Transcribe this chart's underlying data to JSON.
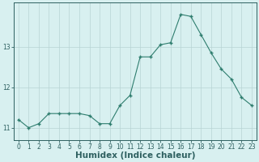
{
  "x": [
    0,
    1,
    2,
    3,
    4,
    5,
    6,
    7,
    8,
    9,
    10,
    11,
    12,
    13,
    14,
    15,
    16,
    17,
    18,
    19,
    20,
    21,
    22,
    23
  ],
  "y": [
    11.2,
    11.0,
    11.1,
    11.35,
    11.35,
    11.35,
    11.35,
    11.3,
    11.1,
    11.1,
    11.55,
    11.8,
    12.75,
    12.75,
    13.05,
    13.1,
    13.8,
    13.75,
    13.3,
    12.85,
    12.45,
    12.2,
    11.75,
    11.55
  ],
  "line_color": "#2e7d6e",
  "marker_color": "#2e7d6e",
  "bg_color": "#d8f0f0",
  "grid_color": "#b8d4d4",
  "xlabel": "Humidex (Indice chaleur)",
  "ylim": [
    10.7,
    14.1
  ],
  "xlim": [
    -0.5,
    23.5
  ],
  "yticks": [
    11,
    12,
    13
  ],
  "xticks": [
    0,
    1,
    2,
    3,
    4,
    5,
    6,
    7,
    8,
    9,
    10,
    11,
    12,
    13,
    14,
    15,
    16,
    17,
    18,
    19,
    20,
    21,
    22,
    23
  ],
  "font_color": "#2e6060",
  "tick_fontsize": 5.5,
  "xlabel_fontsize": 7.5
}
